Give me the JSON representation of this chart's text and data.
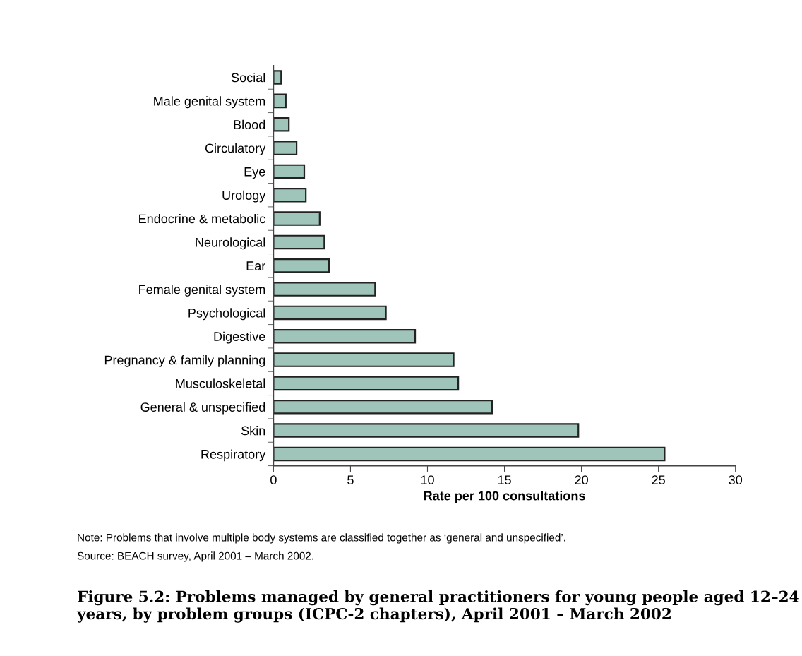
{
  "chart_data": {
    "type": "bar",
    "orientation": "horizontal",
    "title": "Figure 5.2: Problems managed by general practitioners for young people aged 12–24 years, by problem groups (ICPC-2 chapters), April 2001 – March 2002",
    "xlabel": "Rate per 100 consultations",
    "categories": [
      "Social",
      "Male genital system",
      "Blood",
      "Circulatory",
      "Eye",
      "Urology",
      "Endocrine & metabolic",
      "Neurological",
      "Ear",
      "Female genital system",
      "Psychological",
      "Digestive",
      "Pregnancy & family planning",
      "Musculoskeletal",
      "General & unspecified",
      "Skin",
      "Respiratory"
    ],
    "values": [
      0.5,
      0.8,
      1.0,
      1.5,
      2.0,
      2.1,
      3.0,
      3.3,
      3.6,
      6.6,
      7.3,
      9.2,
      11.7,
      12.0,
      14.2,
      19.8,
      25.4
    ],
    "color": "#9fc5bb",
    "xlim": [
      0,
      30
    ],
    "xticks": [
      0,
      5,
      10,
      15,
      20,
      25,
      30
    ],
    "grid": false,
    "legend": false,
    "annotations": [
      "Note: Problems that involve multiple body systems are classified together as ‘general and unspecified’.",
      "Source: BEACH survey, April 2001 – March 2002."
    ]
  }
}
